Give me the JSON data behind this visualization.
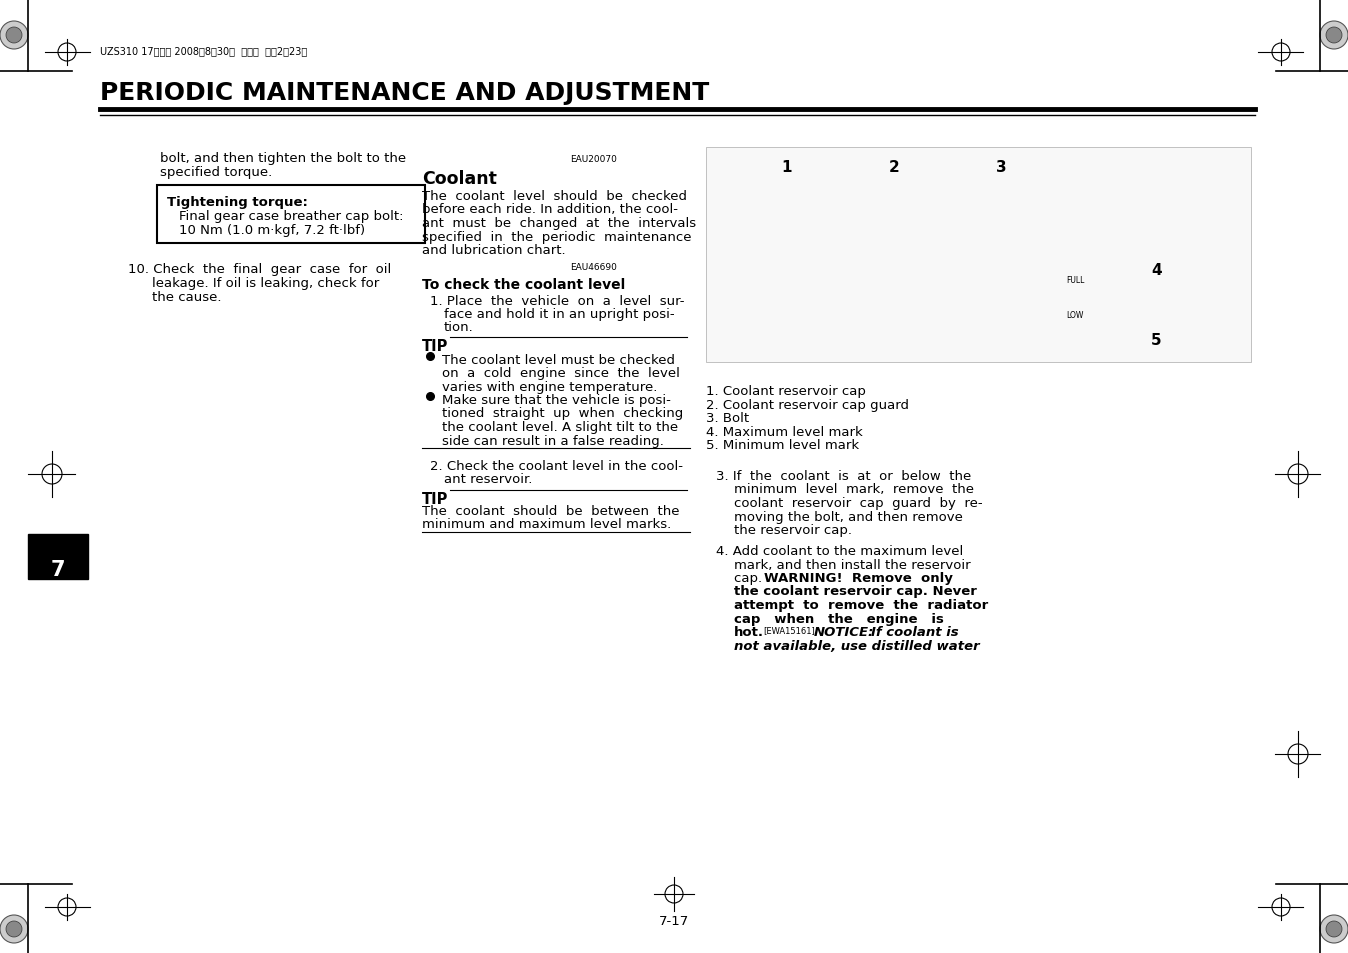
{
  "page_bg": "#ffffff",
  "header_text": "UZS310 17ページ 2008年8月30日  土曜日  午後2時23分",
  "title": "PERIODIC MAINTENANCE AND ADJUSTMENT",
  "page_number": "7-17",
  "chapter_number": "7",
  "body_font_size": 9.5,
  "title_font_size": 18,
  "small_font_size": 7
}
